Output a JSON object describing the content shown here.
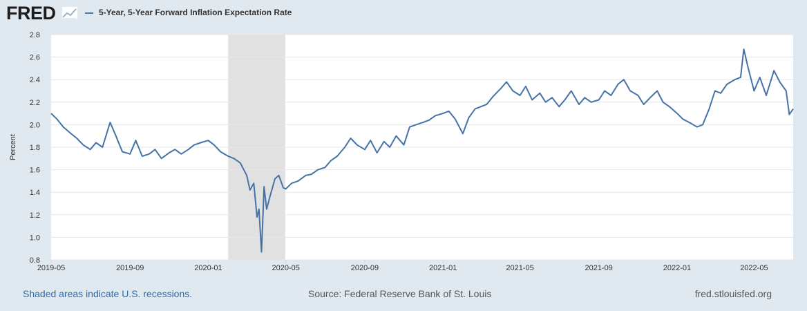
{
  "header": {
    "logo_text": "FRED",
    "logo_icon": "line-chart-icon"
  },
  "colors": {
    "series": "#4572a7",
    "background": "#e1e9f0",
    "plot_background": "#ffffff",
    "recession": "#e1e1e1",
    "gridline": "#e6e6e6",
    "link": "#2d6aa8"
  },
  "footer": {
    "recession_note": "Shaded areas indicate U.S. recessions.",
    "source": "Source: Federal Reserve Bank of St. Louis",
    "site": "fred.stlouisfed.org"
  },
  "chart_data": {
    "type": "line",
    "title": "",
    "xlabel": "",
    "ylabel": "Percent",
    "ylim": [
      0.8,
      2.8
    ],
    "yticks": [
      "0.8",
      "1.0",
      "1.2",
      "1.4",
      "1.6",
      "1.8",
      "2.0",
      "2.2",
      "2.4",
      "2.6",
      "2.8"
    ],
    "xlim": [
      "2019-05-01",
      "2022-07-01"
    ],
    "xticks": [
      "2019-05",
      "2019-09",
      "2020-01",
      "2020-05",
      "2020-09",
      "2021-01",
      "2021-05",
      "2021-09",
      "2022-01",
      "2022-05"
    ],
    "grid": "horizontal",
    "legend_position": "top-left",
    "recessions": [
      {
        "start": "2020-02-01",
        "end": "2020-04-30"
      }
    ],
    "series": [
      {
        "name": "5-Year, 5-Year Forward Inflation Expectation Rate",
        "x": [
          "2019-05-01",
          "2019-05-10",
          "2019-05-20",
          "2019-06-01",
          "2019-06-10",
          "2019-06-20",
          "2019-07-01",
          "2019-07-10",
          "2019-07-20",
          "2019-08-01",
          "2019-08-10",
          "2019-08-20",
          "2019-09-01",
          "2019-09-10",
          "2019-09-20",
          "2019-10-01",
          "2019-10-10",
          "2019-10-20",
          "2019-11-01",
          "2019-11-10",
          "2019-11-20",
          "2019-12-01",
          "2019-12-10",
          "2019-12-20",
          "2020-01-01",
          "2020-01-10",
          "2020-01-20",
          "2020-02-01",
          "2020-02-10",
          "2020-02-20",
          "2020-03-01",
          "2020-03-06",
          "2020-03-12",
          "2020-03-17",
          "2020-03-20",
          "2020-03-24",
          "2020-03-28",
          "2020-04-01",
          "2020-04-07",
          "2020-04-14",
          "2020-04-20",
          "2020-04-27",
          "2020-05-01",
          "2020-05-10",
          "2020-05-20",
          "2020-06-01",
          "2020-06-10",
          "2020-06-20",
          "2020-07-01",
          "2020-07-10",
          "2020-07-20",
          "2020-08-01",
          "2020-08-10",
          "2020-08-20",
          "2020-09-01",
          "2020-09-10",
          "2020-09-20",
          "2020-10-01",
          "2020-10-10",
          "2020-10-20",
          "2020-11-01",
          "2020-11-10",
          "2020-11-20",
          "2020-12-01",
          "2020-12-10",
          "2020-12-20",
          "2021-01-01",
          "2021-01-10",
          "2021-01-20",
          "2021-02-01",
          "2021-02-10",
          "2021-02-20",
          "2021-03-01",
          "2021-03-10",
          "2021-03-20",
          "2021-04-01",
          "2021-04-10",
          "2021-04-20",
          "2021-05-01",
          "2021-05-10",
          "2021-05-20",
          "2021-06-01",
          "2021-06-10",
          "2021-06-20",
          "2021-07-01",
          "2021-07-10",
          "2021-07-20",
          "2021-08-01",
          "2021-08-10",
          "2021-08-20",
          "2021-09-01",
          "2021-09-10",
          "2021-09-20",
          "2021-10-01",
          "2021-10-10",
          "2021-10-20",
          "2021-11-01",
          "2021-11-10",
          "2021-11-20",
          "2021-12-01",
          "2021-12-10",
          "2021-12-20",
          "2022-01-01",
          "2022-01-10",
          "2022-01-20",
          "2022-02-01",
          "2022-02-10",
          "2022-02-20",
          "2022-03-01",
          "2022-03-10",
          "2022-03-20",
          "2022-04-01",
          "2022-04-10",
          "2022-04-15",
          "2022-04-22",
          "2022-05-01",
          "2022-05-10",
          "2022-05-20",
          "2022-06-01",
          "2022-06-10",
          "2022-06-20",
          "2022-06-25",
          "2022-07-01"
        ],
        "values": [
          2.1,
          2.05,
          1.98,
          1.92,
          1.88,
          1.82,
          1.78,
          1.84,
          1.8,
          2.02,
          1.9,
          1.76,
          1.74,
          1.86,
          1.72,
          1.74,
          1.78,
          1.7,
          1.75,
          1.78,
          1.74,
          1.78,
          1.82,
          1.84,
          1.86,
          1.82,
          1.76,
          1.72,
          1.7,
          1.66,
          1.55,
          1.42,
          1.48,
          1.18,
          1.25,
          0.87,
          1.45,
          1.25,
          1.38,
          1.52,
          1.55,
          1.44,
          1.43,
          1.48,
          1.5,
          1.55,
          1.56,
          1.6,
          1.62,
          1.68,
          1.72,
          1.8,
          1.88,
          1.82,
          1.78,
          1.86,
          1.75,
          1.85,
          1.8,
          1.9,
          1.82,
          1.98,
          2.0,
          2.02,
          2.04,
          2.08,
          2.1,
          2.12,
          2.05,
          1.92,
          2.06,
          2.14,
          2.16,
          2.18,
          2.25,
          2.32,
          2.38,
          2.3,
          2.26,
          2.34,
          2.22,
          2.28,
          2.2,
          2.24,
          2.16,
          2.22,
          2.3,
          2.18,
          2.24,
          2.2,
          2.22,
          2.3,
          2.26,
          2.36,
          2.4,
          2.3,
          2.26,
          2.18,
          2.24,
          2.3,
          2.2,
          2.16,
          2.1,
          2.05,
          2.02,
          1.98,
          2.0,
          2.14,
          2.3,
          2.28,
          2.36,
          2.4,
          2.42,
          2.67,
          2.5,
          2.3,
          2.42,
          2.26,
          2.48,
          2.38,
          2.3,
          2.09,
          2.14
        ]
      }
    ]
  }
}
